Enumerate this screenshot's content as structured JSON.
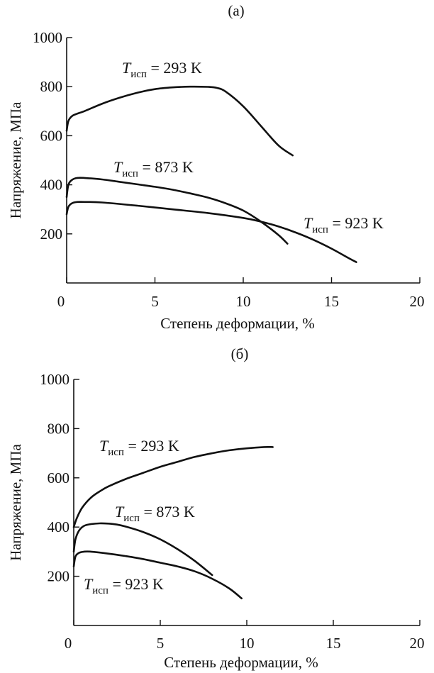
{
  "chart_data": [
    {
      "type": "line",
      "title": "(а)",
      "xlabel": "Степень деформации, %",
      "ylabel": "Напряжение, МПа",
      "xlim": [
        0,
        20
      ],
      "ylim": [
        0,
        1000
      ],
      "xticks": [
        0,
        5,
        10,
        15,
        20
      ],
      "yticks": [
        200,
        400,
        600,
        800,
        1000
      ],
      "grid": false,
      "series": [
        {
          "name": "T_исп = 293 K",
          "label_main": "T",
          "label_sub": "исп",
          "label_rest": " = 293 K",
          "x": [
            0,
            0.1,
            0.3,
            0.6,
            1,
            2,
            3,
            4,
            5,
            6,
            7,
            8,
            8.5,
            9,
            10,
            11,
            12,
            12.8
          ],
          "y": [
            620,
            660,
            680,
            690,
            700,
            730,
            755,
            775,
            790,
            797,
            800,
            799,
            795,
            780,
            720,
            640,
            560,
            520
          ]
        },
        {
          "name": "T_исп = 873 K",
          "label_main": "T",
          "label_sub": "исп",
          "label_rest": " = 873 K",
          "x": [
            0,
            0.1,
            0.3,
            0.6,
            1,
            2,
            3,
            4,
            5,
            6,
            7,
            8,
            9,
            10,
            11,
            12,
            12.5
          ],
          "y": [
            350,
            400,
            420,
            428,
            428,
            422,
            412,
            402,
            392,
            380,
            365,
            348,
            325,
            295,
            250,
            195,
            160
          ]
        },
        {
          "name": "T_исп = 923 K",
          "label_main": "T",
          "label_sub": "исп",
          "label_rest": " = 923 K",
          "x": [
            0,
            0.1,
            0.3,
            0.6,
            1,
            2,
            4,
            6,
            8,
            10,
            11,
            12,
            13,
            14,
            15,
            16,
            16.4
          ],
          "y": [
            280,
            310,
            325,
            330,
            330,
            328,
            315,
            300,
            285,
            265,
            250,
            230,
            205,
            175,
            140,
            100,
            85
          ]
        }
      ]
    },
    {
      "type": "line",
      "title": "(б)",
      "xlabel": "Степень деформации, %",
      "ylabel": "Напряжение, МПа",
      "xlim": [
        0,
        20
      ],
      "ylim": [
        0,
        1000
      ],
      "xticks": [
        0,
        5,
        10,
        15,
        20
      ],
      "yticks": [
        200,
        400,
        600,
        800,
        1000
      ],
      "grid": false,
      "series": [
        {
          "name": "T_исп = 293 K",
          "label_main": "T",
          "label_sub": "исп",
          "label_rest": " = 293 K",
          "x": [
            0,
            0.2,
            0.5,
            1,
            1.5,
            2,
            3,
            4,
            5,
            6,
            7,
            8,
            9,
            10,
            11,
            11.5
          ],
          "y": [
            400,
            440,
            480,
            520,
            545,
            565,
            595,
            620,
            645,
            665,
            685,
            700,
            712,
            720,
            725,
            725
          ]
        },
        {
          "name": "T_исп = 873 K",
          "label_main": "T",
          "label_sub": "исп",
          "label_rest": " = 873 K",
          "x": [
            0,
            0.1,
            0.3,
            0.6,
            1,
            1.5,
            2,
            2.5,
            3,
            4,
            5,
            6,
            7,
            8
          ],
          "y": [
            300,
            350,
            385,
            405,
            412,
            415,
            414,
            410,
            402,
            380,
            350,
            310,
            262,
            205
          ]
        },
        {
          "name": "T_исп = 923 K",
          "label_main": "T",
          "label_sub": "исп",
          "label_rest": " = 923 K",
          "x": [
            0,
            0.1,
            0.3,
            0.6,
            1,
            2,
            3,
            4,
            5,
            6,
            7,
            8,
            9,
            9.7
          ],
          "y": [
            240,
            280,
            295,
            300,
            300,
            292,
            282,
            270,
            255,
            240,
            220,
            190,
            150,
            110
          ]
        }
      ]
    }
  ]
}
